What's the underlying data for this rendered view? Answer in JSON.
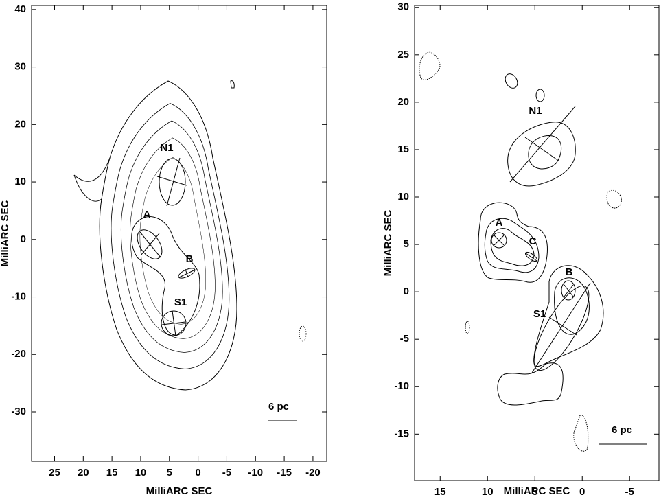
{
  "chart_data": [
    {
      "type": "contour",
      "xlabel": "MilliARC SEC",
      "ylabel": "MilliARC SEC",
      "xlim": [
        29,
        -22.4
      ],
      "ylim": [
        -38.6,
        40.7
      ],
      "xticks": [
        25,
        20,
        15,
        10,
        5,
        0,
        -5,
        -10,
        -15,
        -20
      ],
      "yticks": [
        40,
        30,
        20,
        10,
        0,
        -10,
        -20,
        -30
      ],
      "annotations": [
        "N1",
        "A",
        "B",
        "S1"
      ],
      "scale_label": "6 pc"
    },
    {
      "type": "contour",
      "xlabel": "MilliARC SEC",
      "ylabel": "MilliARC SEC",
      "xlim": [
        17.7,
        -8.1
      ],
      "ylim": [
        -19.9,
        30.2
      ],
      "xticks": [
        15,
        10,
        5,
        0,
        -5
      ],
      "yticks": [
        30,
        25,
        20,
        15,
        10,
        5,
        0,
        -5,
        -10,
        -15
      ],
      "annotations": [
        "N1",
        "A",
        "C",
        "B",
        "S1"
      ],
      "scale_label": "6 pc"
    }
  ]
}
